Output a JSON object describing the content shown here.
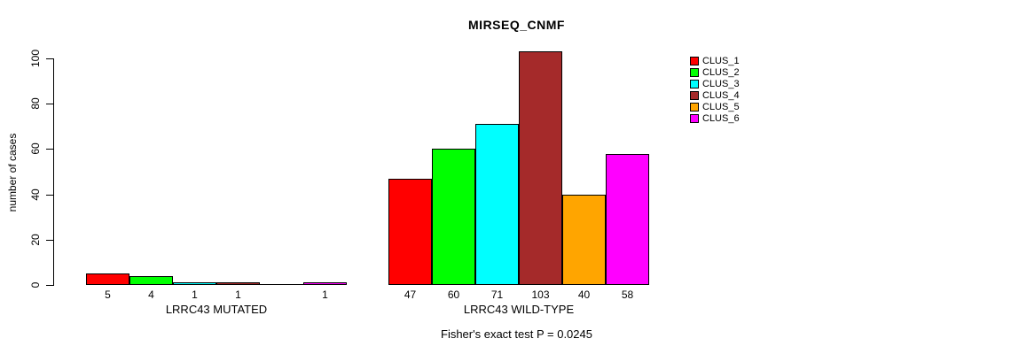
{
  "title": "MIRSEQ_CNMF",
  "footer": "Fisher's exact test P = 0.0245",
  "chart_data": {
    "type": "bar",
    "title": "MIRSEQ_CNMF",
    "xlabel": "",
    "ylabel": "number of cases",
    "ylim": [
      0,
      100
    ],
    "yticks": [
      0,
      20,
      40,
      60,
      80,
      100
    ],
    "grid": false,
    "legend_position": "right-outside",
    "annotation": "Fisher's exact test P = 0.0245",
    "series_names": [
      "CLUS_1",
      "CLUS_2",
      "CLUS_3",
      "CLUS_4",
      "CLUS_5",
      "CLUS_6"
    ],
    "colors": [
      "#FF0000",
      "#00FF00",
      "#00FFFF",
      "#A52A2A",
      "#FFA500",
      "#FF00FF"
    ],
    "groups": [
      {
        "label": "LRRC43 MUTATED",
        "values": [
          5,
          4,
          1,
          1,
          0,
          1
        ],
        "bar_labels": [
          "5",
          "4",
          "1",
          "1",
          "",
          "1"
        ]
      },
      {
        "label": "LRRC43 WILD-TYPE",
        "values": [
          47,
          60,
          71,
          103,
          40,
          58
        ],
        "bar_labels": [
          "47",
          "60",
          "71",
          "103",
          "40",
          "58"
        ]
      }
    ]
  },
  "legend": {
    "items": [
      {
        "label": "CLUS_1",
        "color": "#FF0000"
      },
      {
        "label": "CLUS_2",
        "color": "#00FF00"
      },
      {
        "label": "CLUS_3",
        "color": "#00FFFF"
      },
      {
        "label": "CLUS_4",
        "color": "#A52A2A"
      },
      {
        "label": "CLUS_5",
        "color": "#FFA500"
      },
      {
        "label": "CLUS_6",
        "color": "#FF00FF"
      }
    ]
  }
}
